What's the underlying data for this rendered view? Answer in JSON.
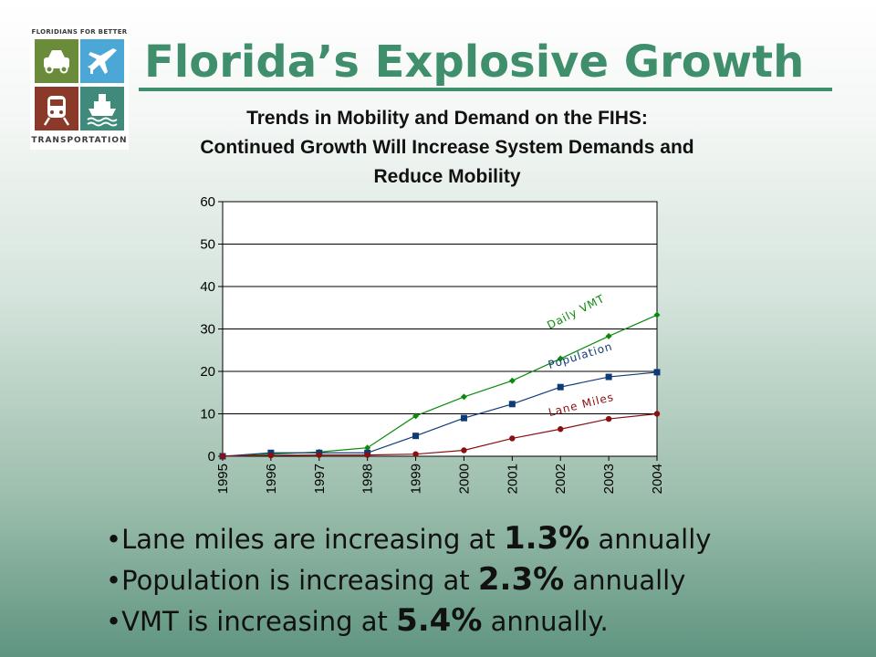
{
  "logo": {
    "top_text": "FLORIDIANS FOR BETTER",
    "bottom_text": "TRANSPORTATION",
    "tiles": [
      "car-icon",
      "airplane-icon",
      "train-icon",
      "ship-icon"
    ]
  },
  "title": "Florida’s Explosive Growth",
  "subtitle": {
    "line1": "Trends in Mobility and Demand on the FIHS:",
    "line2": "Continued Growth Will Increase System Demands and",
    "line3": "Reduce Mobility"
  },
  "chart_data": {
    "type": "line",
    "title": "",
    "xlabel": "",
    "ylabel": "",
    "x": [
      "1995",
      "1996",
      "1997",
      "1998",
      "1999",
      "2000",
      "2001",
      "2002",
      "2003",
      "2004"
    ],
    "ylim": [
      0,
      60
    ],
    "yticks": [
      0,
      10,
      20,
      30,
      40,
      50,
      60
    ],
    "grid": "horizontal",
    "series": [
      {
        "name": "Daily VMT",
        "color": "#0a8a0a",
        "marker": "diamond",
        "values": [
          0,
          0.5,
          1,
          2,
          9.5,
          14,
          17.8,
          23,
          28.3,
          33.3
        ]
      },
      {
        "name": "Population",
        "color": "#0f3a78",
        "marker": "square",
        "values": [
          0,
          0.8,
          0.8,
          0.8,
          4.8,
          9,
          12.3,
          16.3,
          18.7,
          19.8
        ]
      },
      {
        "name": "Lane Miles",
        "color": "#8a1010",
        "marker": "circle",
        "values": [
          0,
          0.2,
          0.3,
          0.3,
          0.5,
          1.4,
          4.2,
          6.4,
          8.8,
          10
        ]
      }
    ]
  },
  "bullets": [
    {
      "before": "Lane miles are increasing at ",
      "value": "1.3%",
      "after": " annually"
    },
    {
      "before": "Population is increasing at ",
      "value": "2.3%",
      "after": " annually"
    },
    {
      "before": "VMT is increasing at ",
      "value": "5.4%",
      "after": " annually."
    }
  ]
}
